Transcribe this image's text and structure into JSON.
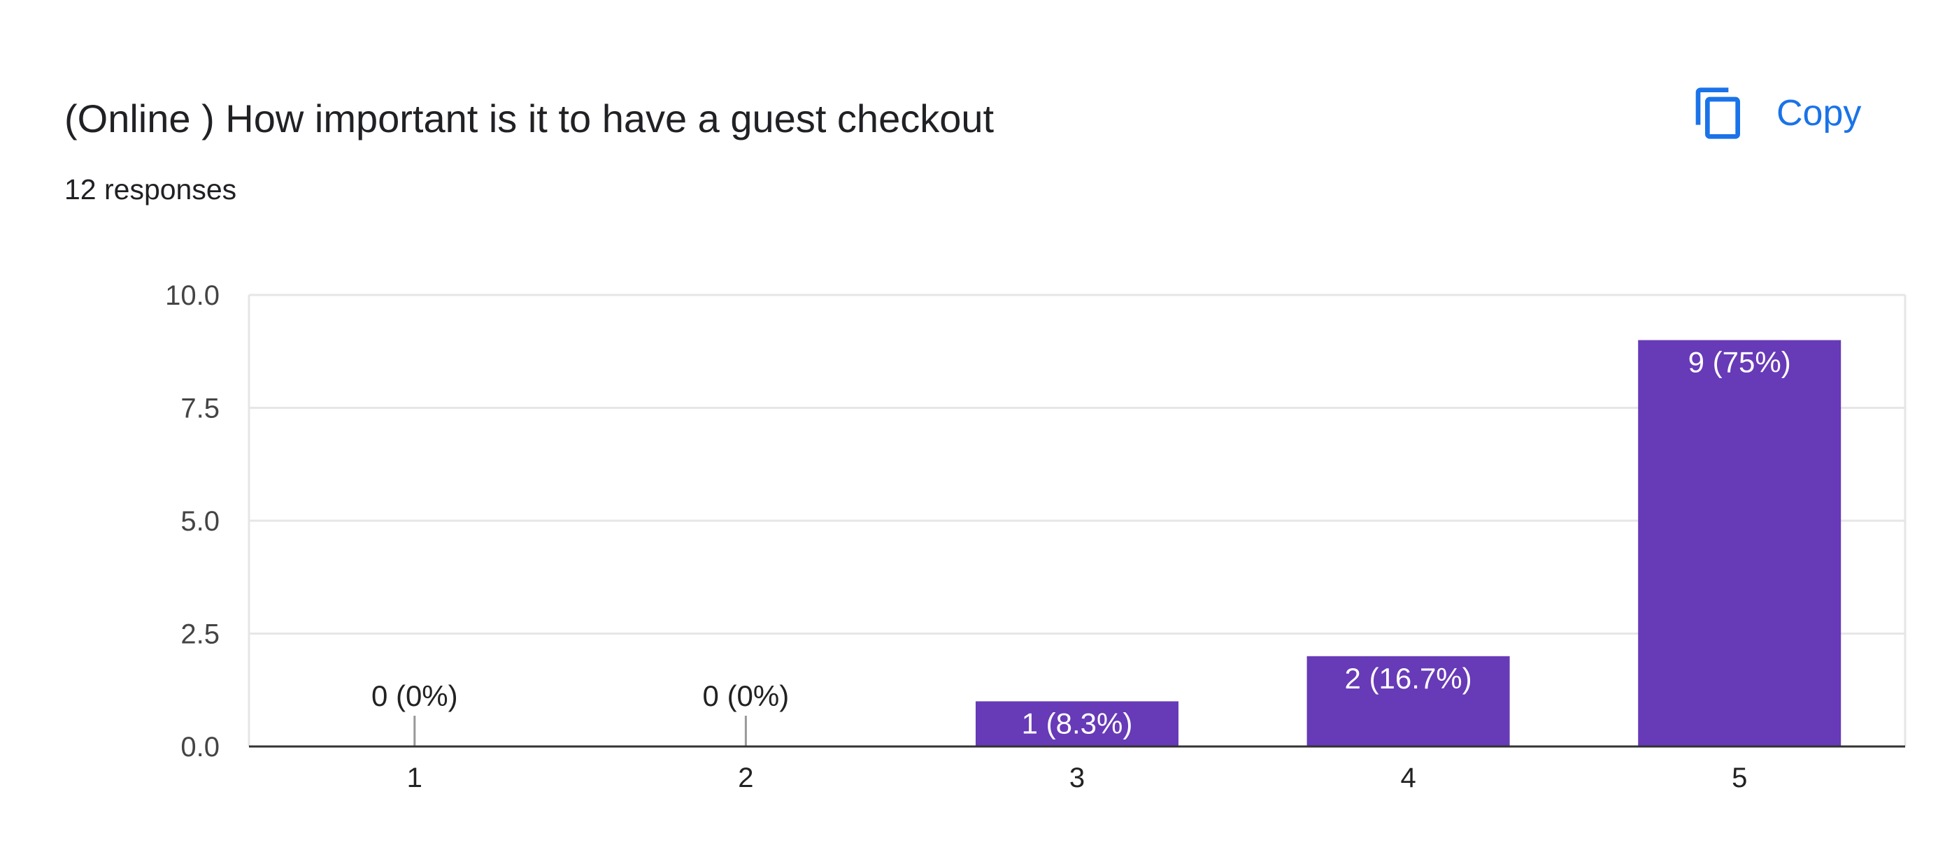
{
  "header": {
    "title": "(Online ) How important is it to have a guest checkout",
    "responses": "12 responses",
    "copy_label": "Copy",
    "copy_icon": "copy-icon"
  },
  "colors": {
    "bar": "#673ab7",
    "accent": "#1a73e8",
    "grid": "#e6e6e6",
    "axis": "#333333"
  },
  "chart_data": {
    "type": "bar",
    "categories": [
      "1",
      "2",
      "3",
      "4",
      "5"
    ],
    "values": [
      0,
      0,
      1,
      2,
      9
    ],
    "data_labels": [
      "0 (0%)",
      "0 (0%)",
      "1 (8.3%)",
      "2 (16.7%)",
      "9 (75%)"
    ],
    "ylim": [
      0,
      10
    ],
    "yticks": [
      "0.0",
      "2.5",
      "5.0",
      "7.5",
      "10.0"
    ],
    "grid": true
  }
}
